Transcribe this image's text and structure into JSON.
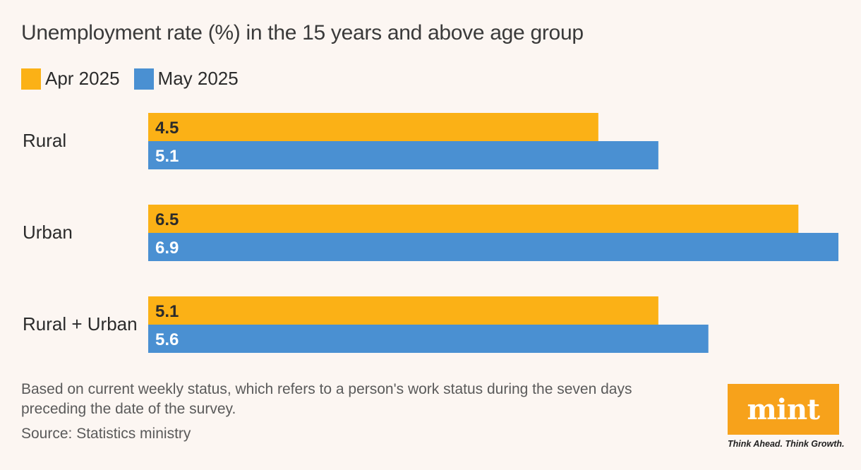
{
  "header": {
    "title": "Unemployment rate (%) in the 15 years and above age group"
  },
  "legend": [
    {
      "label": "Apr 2025",
      "color": "#fbb116"
    },
    {
      "label": "May 2025",
      "color": "#4a90d2"
    }
  ],
  "chart_data": {
    "type": "bar",
    "orientation": "horizontal",
    "title": "Unemployment rate (%) in the 15 years and above age group",
    "categories": [
      "Rural",
      "Urban",
      "Rural + Urban"
    ],
    "series": [
      {
        "name": "Apr 2025",
        "color": "#fbb116",
        "values": [
          4.5,
          6.5,
          5.1
        ]
      },
      {
        "name": "May 2025",
        "color": "#4a90d2",
        "values": [
          5.1,
          6.9,
          5.6
        ]
      }
    ],
    "xlabel": "",
    "ylabel": "",
    "xlim": [
      0,
      6.9
    ],
    "grid": false,
    "legend_position": "top-left",
    "data_labels": true
  },
  "footer": {
    "note": "Based on current weekly status, which refers to a person's work status during the seven days preceding the date of the survey.",
    "source": "Source: Statistics ministry"
  },
  "brand": {
    "logo_text": "mint",
    "tagline": "Think Ahead. Think Growth.",
    "color": "#f7a21b"
  }
}
